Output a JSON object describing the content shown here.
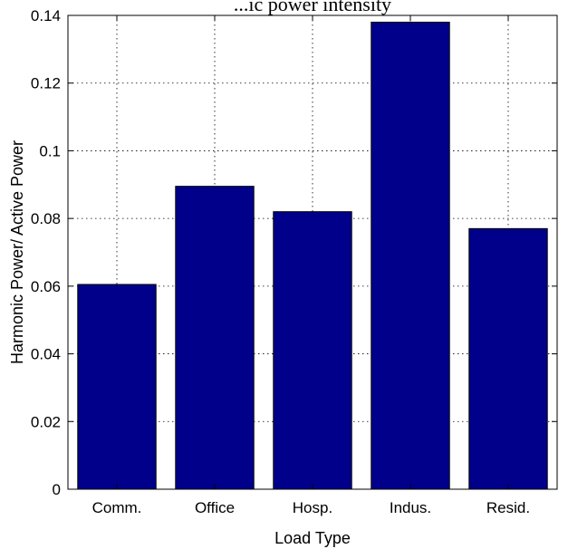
{
  "chart_data": {
    "type": "bar",
    "title": "...ic power intensity",
    "xlabel": "Load Type",
    "ylabel": "Harmonic Power/ Active Power",
    "categories": [
      "Comm.",
      "Office",
      "Hosp.",
      "Indus.",
      "Resid."
    ],
    "values": [
      0.0605,
      0.0895,
      0.082,
      0.138,
      0.077
    ],
    "ylim": [
      0,
      0.14
    ],
    "yticks": [
      0,
      0.02,
      0.04,
      0.06,
      0.08,
      0.1,
      0.12,
      0.14
    ],
    "ytick_labels": [
      "0",
      "0.02",
      "0.04",
      "0.06",
      "0.08",
      "0.1",
      "0.12",
      "0.14"
    ],
    "grid": true,
    "bar_color": "#00008b"
  }
}
